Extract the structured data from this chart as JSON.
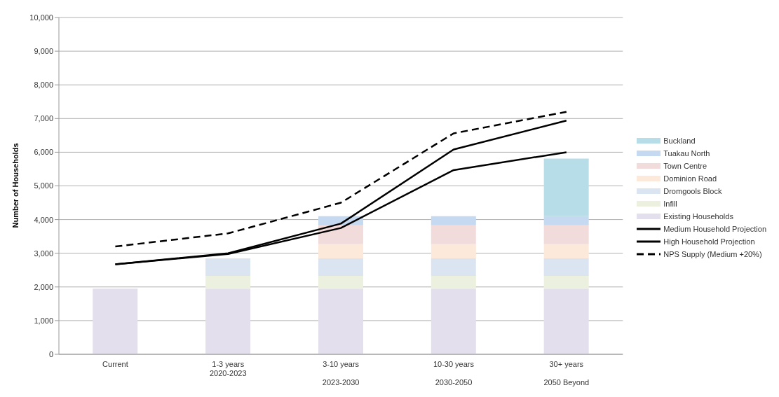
{
  "chart_data": {
    "type": "bar",
    "stacked": true,
    "ylabel": "Number of Households",
    "categories": [
      "Current",
      "1-3 years\n2020-2023",
      "3-10 years\n\n2023-2030",
      "10-30 years\n\n2030-2050",
      "30+ years\n\n2050 Beyond"
    ],
    "series": [
      {
        "name": "Existing Households",
        "color": "#e4dfec",
        "values": [
          1950,
          1950,
          1950,
          1950,
          1950
        ]
      },
      {
        "name": "Infill",
        "color": "#ebf1de",
        "values": [
          null,
          380,
          380,
          380,
          380
        ]
      },
      {
        "name": "Dromgools  Block",
        "color": "#dbe5f1",
        "values": [
          null,
          520,
          520,
          520,
          520
        ]
      },
      {
        "name": "Dominion Road",
        "color": "#fde9d9",
        "values": [
          null,
          null,
          420,
          420,
          420
        ]
      },
      {
        "name": "Town Centre",
        "color": "#f2dcdb",
        "values": [
          null,
          null,
          560,
          560,
          560
        ]
      },
      {
        "name": "Tuakau North",
        "color": "#c5d9f1",
        "values": [
          null,
          null,
          270,
          270,
          270
        ]
      },
      {
        "name": "Buckland",
        "color": "#b7dee8",
        "values": [
          null,
          null,
          null,
          null,
          1710
        ]
      },
      {
        "name": "Medium Household Projection",
        "type": "line",
        "color": "#000000",
        "line_style": "solid",
        "values": [
          2670,
          2980,
          3750,
          5470,
          6000
        ]
      },
      {
        "name": "High Household Projection",
        "type": "line",
        "color": "#000000",
        "line_style": "solid",
        "values": [
          2670,
          3000,
          3880,
          6080,
          6940
        ]
      },
      {
        "name": "NPS Supply (Medium +20%)",
        "type": "line",
        "color": "#000000",
        "line_style": "dashed",
        "values": [
          3200,
          3590,
          4500,
          6560,
          7200
        ]
      }
    ],
    "ylim": [
      0,
      10000
    ],
    "yticks": [
      0,
      {
        "value": 1000,
        "label": "1,000"
      },
      {
        "value": 2000,
        "label": "2,000"
      },
      {
        "value": 3000,
        "label": "3,000"
      },
      {
        "value": 4000,
        "label": "4,000"
      },
      {
        "value": 5000,
        "label": "5,000"
      },
      {
        "value": 6000,
        "label": "6,000"
      },
      {
        "value": 7000,
        "label": "7,000"
      },
      {
        "value": 8000,
        "label": "8,000"
      },
      {
        "value": 9000,
        "label": "9,000"
      },
      {
        "value": 10000,
        "label": "10,000"
      }
    ],
    "grid": "y",
    "legend": "right",
    "marker": "none"
  }
}
